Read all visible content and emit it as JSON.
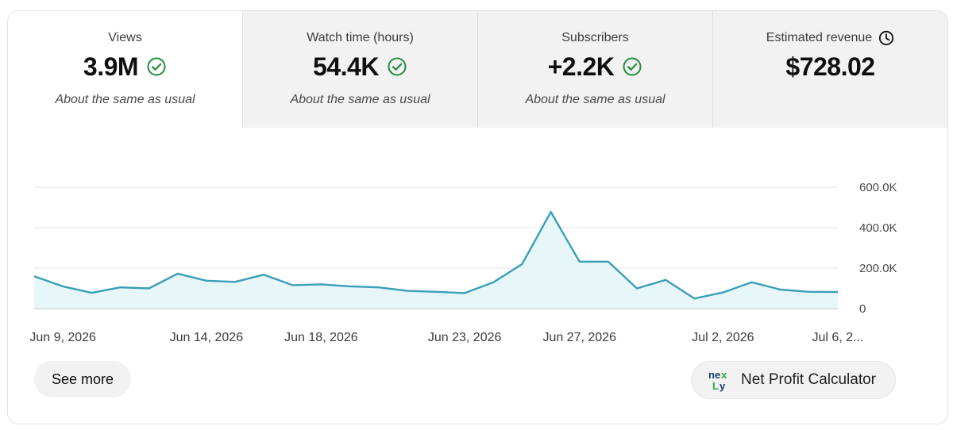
{
  "tabs": [
    {
      "label": "Views",
      "value": "3.9M",
      "note": "About the same as usual",
      "active": true
    },
    {
      "label": "Watch time (hours)",
      "value": "54.4K",
      "note": "About the same as usual",
      "active": false
    },
    {
      "label": "Subscribers",
      "value": "+2.2K",
      "note": "About the same as usual",
      "active": false
    },
    {
      "label": "Estimated revenue",
      "value": "$728.02",
      "note": "",
      "active": false
    }
  ],
  "colors": {
    "accent": "#3a9fb7",
    "area": "#e3f4f8",
    "check": "#1e8e3e",
    "grid": "#e5e5e5"
  },
  "icons": {
    "check": "check-circle-icon",
    "clock": "clock-icon",
    "logo": "nexify-logo-icon"
  },
  "chart_data": {
    "type": "area",
    "x": [
      "Jun 8, 2026",
      "Jun 9, 2026",
      "Jun 10, 2026",
      "Jun 11, 2026",
      "Jun 12, 2026",
      "Jun 13, 2026",
      "Jun 14, 2026",
      "Jun 15, 2026",
      "Jun 16, 2026",
      "Jun 17, 2026",
      "Jun 18, 2026",
      "Jun 19, 2026",
      "Jun 20, 2026",
      "Jun 21, 2026",
      "Jun 22, 2026",
      "Jun 23, 2026",
      "Jun 24, 2026",
      "Jun 25, 2026",
      "Jun 26, 2026",
      "Jun 27, 2026",
      "Jun 28, 2026",
      "Jun 29, 2026",
      "Jun 30, 2026",
      "Jul 1, 2026",
      "Jul 2, 2026",
      "Jul 3, 2026",
      "Jul 4, 2026",
      "Jul 5, 2026",
      "Jul 6, 2026"
    ],
    "values": [
      160000,
      110000,
      78000,
      105000,
      100000,
      173000,
      138000,
      132000,
      168000,
      116000,
      120000,
      110000,
      105000,
      88000,
      83000,
      77000,
      130000,
      220000,
      478000,
      232000,
      232000,
      100000,
      142000,
      50000,
      80000,
      130000,
      94000,
      83000,
      82000
    ],
    "ylim": [
      0,
      600000
    ],
    "yticks": [
      0,
      200000,
      400000,
      600000
    ],
    "ytick_labels": [
      "0",
      "200.0K",
      "400.0K",
      "600.0K"
    ],
    "xtick_labels": [
      {
        "label": "Jun 9, 2026",
        "index": 1
      },
      {
        "label": "Jun 14, 2026",
        "index": 6
      },
      {
        "label": "Jun 18, 2026",
        "index": 10
      },
      {
        "label": "Jun 23, 2026",
        "index": 15
      },
      {
        "label": "Jun 27, 2026",
        "index": 19
      },
      {
        "label": "Jul 2, 2026",
        "index": 24
      },
      {
        "label": "Jul 6, 2...",
        "index": 28
      }
    ],
    "grid": true,
    "title": "",
    "xlabel": "",
    "ylabel": ""
  },
  "actions": {
    "see_more": "See more",
    "net_profit": "Net Profit Calculator"
  }
}
